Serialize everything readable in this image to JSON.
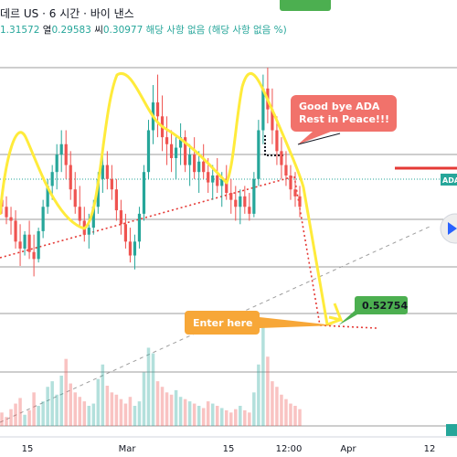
{
  "header": {
    "symbol_title": "데르 US · 6 시간 · 바이 낸스",
    "ohlc": [
      {
        "label": "",
        "value": "1.31572"
      },
      {
        "label": "열",
        "value": "0.29583"
      },
      {
        "label": "씨",
        "value": "0.30977"
      }
    ],
    "notice": "해당 사항 없음 (해당 사항 없음 %)"
  },
  "annotations": {
    "goodbye": "Good bye ADA\nRest in Peace!!!",
    "enter": "Enter here",
    "target_price": "0.52754",
    "price_tag": "ADA"
  },
  "colors": {
    "up": "#26a69a",
    "down": "#ef5350",
    "highlight": "#ffeb3b",
    "callout_red": "#f1726b",
    "callout_orange": "#f7a738",
    "price_green": "#4caf50",
    "dotted_red": "#e53935"
  },
  "chart_data": {
    "type": "candlestick",
    "x_tick_labels": [
      "15",
      "Mar",
      "15",
      "12:00",
      "Apr",
      "12"
    ],
    "ohlc_approx": [
      [
        1.02,
        1.05,
        0.98,
        1.0
      ],
      [
        1.0,
        1.03,
        0.95,
        0.97
      ],
      [
        0.97,
        1.0,
        0.92,
        0.96
      ],
      [
        0.96,
        0.99,
        0.88,
        0.9
      ],
      [
        0.9,
        0.95,
        0.83,
        0.88
      ],
      [
        0.88,
        0.93,
        0.86,
        0.92
      ],
      [
        0.92,
        0.96,
        0.85,
        0.87
      ],
      [
        0.87,
        0.92,
        0.8,
        0.85
      ],
      [
        0.85,
        0.94,
        0.84,
        0.93
      ],
      [
        0.93,
        1.02,
        0.91,
        1.0
      ],
      [
        1.0,
        1.08,
        0.98,
        1.06
      ],
      [
        1.06,
        1.12,
        1.02,
        1.1
      ],
      [
        1.1,
        1.18,
        1.05,
        1.15
      ],
      [
        1.15,
        1.22,
        1.1,
        1.18
      ],
      [
        1.18,
        1.22,
        1.08,
        1.12
      ],
      [
        1.12,
        1.16,
        1.02,
        1.05
      ],
      [
        1.05,
        1.1,
        0.98,
        1.0
      ],
      [
        1.0,
        1.06,
        0.94,
        0.96
      ],
      [
        0.96,
        1.0,
        0.9,
        0.92
      ],
      [
        0.92,
        0.98,
        0.88,
        0.94
      ],
      [
        0.94,
        1.02,
        0.92,
        1.0
      ],
      [
        1.0,
        1.1,
        0.98,
        1.08
      ],
      [
        1.08,
        1.18,
        1.04,
        1.12
      ],
      [
        1.12,
        1.16,
        1.05,
        1.08
      ],
      [
        1.08,
        1.12,
        1.02,
        1.05
      ],
      [
        1.05,
        1.08,
        0.96,
        0.99
      ],
      [
        0.99,
        1.02,
        0.92,
        0.95
      ],
      [
        0.95,
        0.98,
        0.88,
        0.9
      ],
      [
        0.9,
        0.94,
        0.84,
        0.86
      ],
      [
        0.86,
        0.92,
        0.82,
        0.9
      ],
      [
        0.9,
        1.0,
        0.88,
        0.98
      ],
      [
        0.98,
        1.12,
        0.96,
        1.1
      ],
      [
        1.1,
        1.25,
        1.08,
        1.22
      ],
      [
        1.22,
        1.35,
        1.18,
        1.3
      ],
      [
        1.3,
        1.38,
        1.2,
        1.26
      ],
      [
        1.26,
        1.32,
        1.16,
        1.2
      ],
      [
        1.2,
        1.26,
        1.12,
        1.18
      ],
      [
        1.18,
        1.22,
        1.1,
        1.14
      ],
      [
        1.14,
        1.2,
        1.08,
        1.17
      ],
      [
        1.17,
        1.24,
        1.12,
        1.2
      ],
      [
        1.2,
        1.22,
        1.1,
        1.12
      ],
      [
        1.12,
        1.18,
        1.06,
        1.15
      ],
      [
        1.15,
        1.2,
        1.08,
        1.1
      ],
      [
        1.1,
        1.16,
        1.04,
        1.13
      ],
      [
        1.13,
        1.18,
        1.08,
        1.1
      ],
      [
        1.1,
        1.14,
        1.04,
        1.07
      ],
      [
        1.07,
        1.12,
        1.02,
        1.09
      ],
      [
        1.09,
        1.14,
        1.04,
        1.06
      ],
      [
        1.06,
        1.1,
        1.0,
        1.08
      ],
      [
        1.08,
        1.12,
        1.02,
        1.04
      ],
      [
        1.04,
        1.08,
        0.98,
        1.02
      ],
      [
        1.02,
        1.06,
        0.96,
        1.0
      ],
      [
        1.0,
        1.05,
        0.95,
        1.03
      ],
      [
        1.03,
        1.06,
        0.98,
        1.0
      ],
      [
        1.0,
        1.04,
        0.96,
        0.98
      ],
      [
        0.98,
        1.1,
        0.97,
        1.08
      ],
      [
        1.08,
        1.25,
        1.06,
        1.22
      ],
      [
        1.22,
        1.38,
        1.18,
        1.34
      ],
      [
        1.34,
        1.4,
        1.24,
        1.28
      ],
      [
        1.28,
        1.34,
        1.18,
        1.22
      ],
      [
        1.22,
        1.26,
        1.12,
        1.16
      ],
      [
        1.16,
        1.2,
        1.08,
        1.12
      ],
      [
        1.12,
        1.16,
        1.06,
        1.09
      ],
      [
        1.09,
        1.12,
        1.02,
        1.05
      ],
      [
        1.05,
        1.1,
        1.0,
        1.03
      ],
      [
        1.03,
        1.06,
        0.97,
        1.0
      ]
    ],
    "volumes": [
      12,
      8,
      15,
      20,
      25,
      10,
      14,
      30,
      18,
      22,
      35,
      40,
      28,
      45,
      60,
      38,
      30,
      26,
      22,
      18,
      20,
      42,
      55,
      36,
      30,
      28,
      24,
      20,
      26,
      18,
      22,
      48,
      70,
      65,
      40,
      35,
      30,
      28,
      32,
      26,
      24,
      22,
      20,
      18,
      16,
      22,
      20,
      18,
      16,
      14,
      12,
      15,
      18,
      14,
      12,
      30,
      55,
      90,
      62,
      40,
      35,
      28,
      24,
      20,
      18,
      15
    ]
  }
}
